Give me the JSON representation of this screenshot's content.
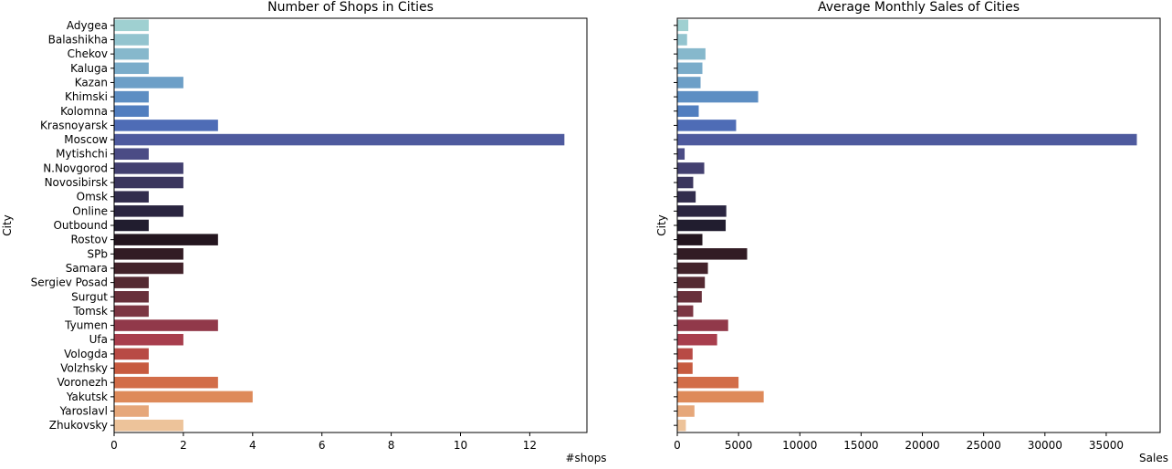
{
  "chart_data": [
    {
      "type": "bar",
      "orientation": "horizontal",
      "title": "Number of Shops in Cities",
      "xlabel": "#shops",
      "ylabel": "City",
      "xlim": [
        0,
        13.65
      ],
      "xticks": [
        0,
        2,
        4,
        6,
        8,
        10,
        12
      ],
      "xtick_labels": [
        "0",
        "2",
        "4",
        "6",
        "8",
        "10",
        "12"
      ],
      "grid": false,
      "categories": [
        "Adygea",
        "Balashikha",
        "Chekov",
        "Kaluga",
        "Kazan",
        "Khimski",
        "Kolomna",
        "Krasnoyarsk",
        "Moscow",
        "Mytishchi",
        "N.Novgorod",
        "Novosibirsk",
        "Omsk",
        "Online",
        "Outbound",
        "Rostov",
        "SPb",
        "Samara",
        "Sergiev Posad",
        "Surgut",
        "Tomsk",
        "Tyumen",
        "Ufa",
        "Vologda",
        "Volzhsky",
        "Voronezh",
        "Yakutsk",
        "Yaroslavl",
        "Zhukovsky"
      ],
      "values": [
        1,
        1,
        1,
        1,
        2,
        1,
        1,
        3,
        13,
        1,
        2,
        2,
        1,
        2,
        1,
        3,
        2,
        2,
        1,
        1,
        1,
        3,
        2,
        1,
        1,
        3,
        4,
        1,
        2
      ]
    },
    {
      "type": "bar",
      "orientation": "horizontal",
      "title": "Average Monthly Sales of Cities",
      "xlabel": "Sales",
      "ylabel": "City",
      "xlim": [
        0,
        39400
      ],
      "xticks": [
        0,
        5000,
        10000,
        15000,
        20000,
        25000,
        30000,
        35000
      ],
      "xtick_labels": [
        "0",
        "5000",
        "10000",
        "15000",
        "20000",
        "25000",
        "30000",
        "35000"
      ],
      "grid": false,
      "show_category_labels": false,
      "categories": [
        "Adygea",
        "Balashikha",
        "Chekov",
        "Kaluga",
        "Kazan",
        "Khimski",
        "Kolomna",
        "Krasnoyarsk",
        "Moscow",
        "Mytishchi",
        "N.Novgorod",
        "Novosibirsk",
        "Omsk",
        "Online",
        "Outbound",
        "Rostov",
        "SPb",
        "Samara",
        "Sergiev Posad",
        "Surgut",
        "Tomsk",
        "Tyumen",
        "Ufa",
        "Vologda",
        "Volzhsky",
        "Voronezh",
        "Yakutsk",
        "Yaroslavl",
        "Zhukovsky"
      ],
      "values": [
        900,
        800,
        2300,
        2050,
        1900,
        6600,
        1750,
        4800,
        37500,
        600,
        2200,
        1300,
        1500,
        4000,
        3950,
        2050,
        5700,
        2500,
        2250,
        2000,
        1300,
        4150,
        3250,
        1250,
        1250,
        5000,
        7050,
        1400,
        700
      ]
    }
  ],
  "colors": {
    "bar_palette": [
      "#9fd0d1",
      "#93c4cf",
      "#86b8cc",
      "#7aacca",
      "#6d9fc7",
      "#5d8ec3",
      "#517ebf",
      "#4e6cb6",
      "#4e5a9e",
      "#4b4c85",
      "#434070",
      "#3b365e",
      "#322d4d",
      "#2a2540",
      "#211d2f",
      "#24161f",
      "#321c24",
      "#42222a",
      "#552a32",
      "#68303b",
      "#7c3643",
      "#91394a",
      "#a83e4d",
      "#b84a45",
      "#c75a3f",
      "#d26d49",
      "#de8a5a",
      "#e6a77a",
      "#edc39a"
    ]
  }
}
